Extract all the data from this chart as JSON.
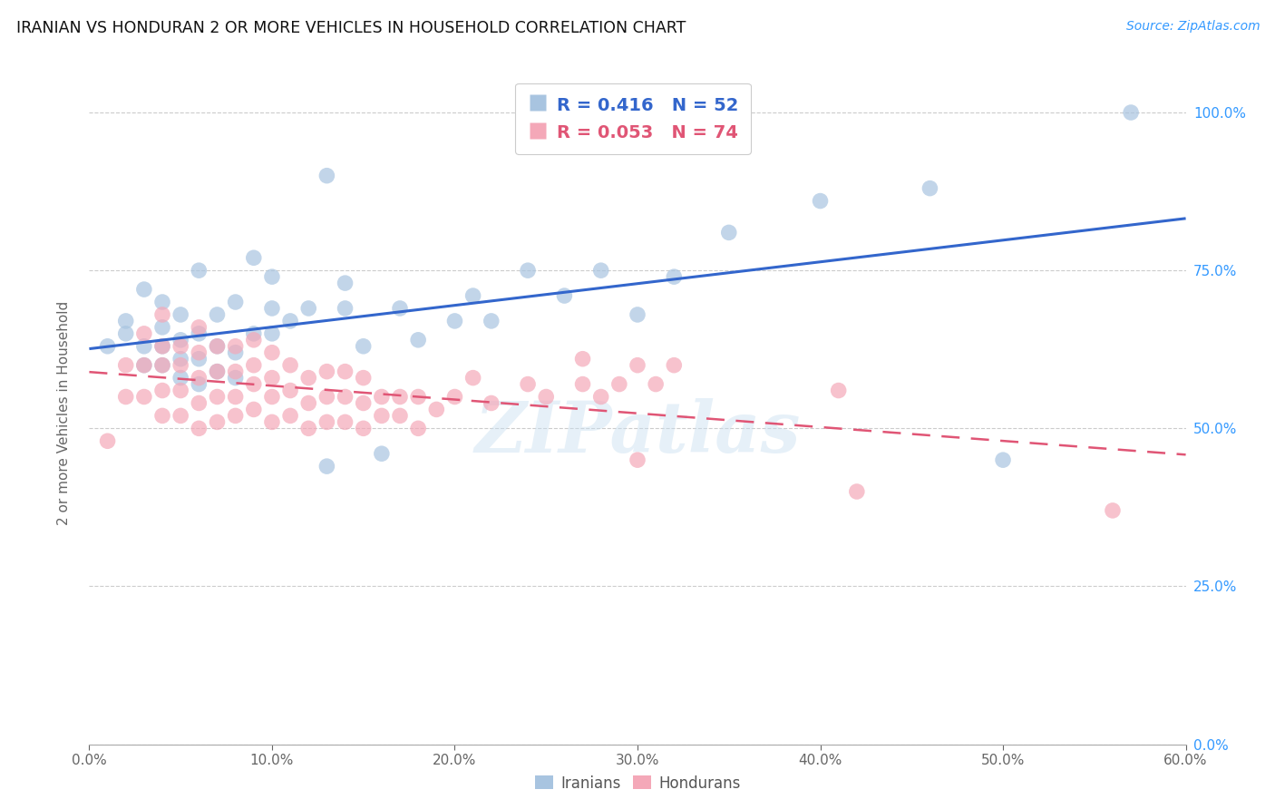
{
  "title": "IRANIAN VS HONDURAN 2 OR MORE VEHICLES IN HOUSEHOLD CORRELATION CHART",
  "source": "Source: ZipAtlas.com",
  "xlabel_ticks": [
    "0.0%",
    "10.0%",
    "20.0%",
    "30.0%",
    "40.0%",
    "50.0%",
    "60.0%"
  ],
  "ylabel_ticks": [
    "0.0%",
    "25.0%",
    "50.0%",
    "75.0%",
    "100.0%"
  ],
  "ylabel_label": "2 or more Vehicles in Household",
  "xmin": 0.0,
  "xmax": 0.6,
  "ymin": 0.0,
  "ymax": 1.05,
  "iranian_color": "#a8c4e0",
  "honduran_color": "#f4a8b8",
  "iranian_line_color": "#3366cc",
  "honduran_line_color": "#e05575",
  "legend_iranian_label": "Iranians",
  "legend_honduran_label": "Hondurans",
  "R_iranian": 0.416,
  "N_iranian": 52,
  "R_honduran": 0.053,
  "N_honduran": 74,
  "watermark": "ZIPatlas",
  "iranians_x": [
    0.01,
    0.02,
    0.02,
    0.03,
    0.03,
    0.03,
    0.04,
    0.04,
    0.04,
    0.04,
    0.05,
    0.05,
    0.05,
    0.05,
    0.06,
    0.06,
    0.06,
    0.06,
    0.07,
    0.07,
    0.07,
    0.08,
    0.08,
    0.08,
    0.09,
    0.09,
    0.1,
    0.1,
    0.1,
    0.11,
    0.12,
    0.13,
    0.14,
    0.14,
    0.15,
    0.16,
    0.17,
    0.18,
    0.2,
    0.21,
    0.22,
    0.24,
    0.26,
    0.28,
    0.3,
    0.32,
    0.35,
    0.4,
    0.46,
    0.5,
    0.57,
    0.13
  ],
  "iranians_y": [
    0.63,
    0.65,
    0.67,
    0.6,
    0.63,
    0.72,
    0.6,
    0.63,
    0.66,
    0.7,
    0.58,
    0.61,
    0.64,
    0.68,
    0.57,
    0.61,
    0.65,
    0.75,
    0.59,
    0.63,
    0.68,
    0.58,
    0.62,
    0.7,
    0.65,
    0.77,
    0.65,
    0.69,
    0.74,
    0.67,
    0.69,
    0.44,
    0.69,
    0.73,
    0.63,
    0.46,
    0.69,
    0.64,
    0.67,
    0.71,
    0.67,
    0.75,
    0.71,
    0.75,
    0.68,
    0.74,
    0.81,
    0.86,
    0.88,
    0.45,
    1.0,
    0.9
  ],
  "hondurans_x": [
    0.01,
    0.02,
    0.02,
    0.03,
    0.03,
    0.03,
    0.04,
    0.04,
    0.04,
    0.04,
    0.04,
    0.05,
    0.05,
    0.05,
    0.05,
    0.06,
    0.06,
    0.06,
    0.06,
    0.06,
    0.07,
    0.07,
    0.07,
    0.07,
    0.08,
    0.08,
    0.08,
    0.08,
    0.09,
    0.09,
    0.09,
    0.09,
    0.1,
    0.1,
    0.1,
    0.1,
    0.11,
    0.11,
    0.11,
    0.12,
    0.12,
    0.12,
    0.13,
    0.13,
    0.13,
    0.14,
    0.14,
    0.14,
    0.15,
    0.15,
    0.15,
    0.16,
    0.16,
    0.17,
    0.17,
    0.18,
    0.18,
    0.19,
    0.2,
    0.21,
    0.22,
    0.24,
    0.25,
    0.27,
    0.27,
    0.28,
    0.29,
    0.3,
    0.31,
    0.32,
    0.3,
    0.41,
    0.42,
    0.56
  ],
  "hondurans_y": [
    0.48,
    0.55,
    0.6,
    0.55,
    0.6,
    0.65,
    0.52,
    0.56,
    0.6,
    0.63,
    0.68,
    0.52,
    0.56,
    0.6,
    0.63,
    0.5,
    0.54,
    0.58,
    0.62,
    0.66,
    0.51,
    0.55,
    0.59,
    0.63,
    0.52,
    0.55,
    0.59,
    0.63,
    0.53,
    0.57,
    0.6,
    0.64,
    0.51,
    0.55,
    0.58,
    0.62,
    0.52,
    0.56,
    0.6,
    0.5,
    0.54,
    0.58,
    0.51,
    0.55,
    0.59,
    0.51,
    0.55,
    0.59,
    0.5,
    0.54,
    0.58,
    0.52,
    0.55,
    0.52,
    0.55,
    0.5,
    0.55,
    0.53,
    0.55,
    0.58,
    0.54,
    0.57,
    0.55,
    0.57,
    0.61,
    0.55,
    0.57,
    0.6,
    0.57,
    0.6,
    0.45,
    0.56,
    0.4,
    0.37
  ]
}
